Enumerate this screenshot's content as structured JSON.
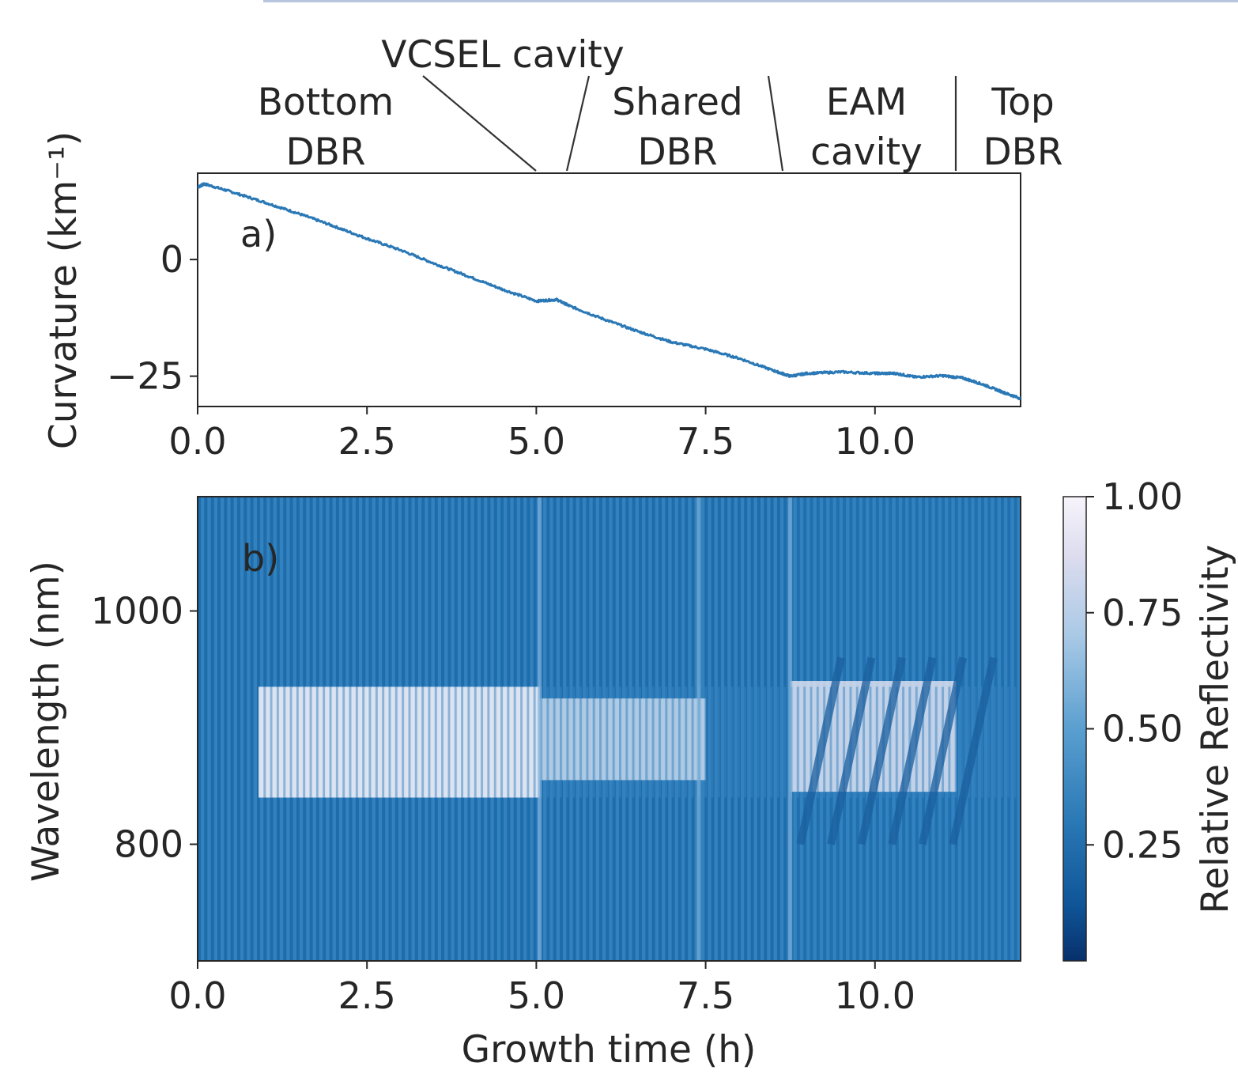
{
  "colors": {
    "line": "#2a78b5",
    "bg_stripe_dark": "#1c6aa8",
    "bg_stripe_light": "#4a93c8",
    "band_light": "#f0eef6"
  },
  "chart_data": [
    {
      "type": "line",
      "panel_label": "a)",
      "ylabel": "Curvature (km⁻¹)",
      "xlim": [
        0,
        12.15
      ],
      "ylim": [
        -31.5,
        18.5
      ],
      "x_ticks": [
        "0.0",
        "2.5",
        "5.0",
        "7.5",
        "10.0"
      ],
      "x_tick_values": [
        0,
        2.5,
        5,
        7.5,
        10
      ],
      "y_ticks": [
        "0",
        "−25"
      ],
      "y_tick_values": [
        0,
        -25
      ],
      "series": [
        {
          "x": [
            0,
            0.1,
            0.5,
            1.0,
            1.5,
            2.0,
            2.5,
            3.0,
            3.5,
            4.0,
            4.5,
            5.0,
            5.3,
            5.5,
            6.0,
            6.5,
            7.0,
            7.5,
            8.0,
            8.5,
            8.75,
            9.0,
            9.5,
            10.0,
            10.3,
            10.6,
            11.0,
            11.3,
            11.6,
            11.9,
            12.15
          ],
          "y": [
            15.5,
            16.2,
            14.5,
            12.2,
            9.8,
            7.2,
            4.5,
            2.0,
            -0.9,
            -3.6,
            -6.4,
            -8.9,
            -8.6,
            -10.0,
            -12.8,
            -15.4,
            -17.7,
            -19.2,
            -21.2,
            -23.8,
            -25.0,
            -24.4,
            -24.1,
            -24.4,
            -24.4,
            -25.2,
            -24.9,
            -25.4,
            -26.8,
            -28.5,
            -29.8
          ]
        }
      ],
      "annotations": [
        {
          "label": [
            "Bottom",
            "DBR"
          ]
        },
        {
          "label": [
            "VCSEL cavity"
          ]
        },
        {
          "label": [
            "Shared",
            "DBR"
          ]
        },
        {
          "label": [
            "EAM",
            "cavity"
          ]
        },
        {
          "label": [
            "Top",
            "DBR"
          ]
        }
      ],
      "region_boundaries_h": [
        5.0,
        5.45,
        8.75,
        11.2
      ]
    },
    {
      "type": "heatmap",
      "panel_label": "b)",
      "xlabel": "Growth time (h)",
      "ylabel": "Wavelength (nm)",
      "xlim": [
        0,
        12.15
      ],
      "ylim": [
        700,
        1098
      ],
      "x_ticks": [
        "0.0",
        "2.5",
        "5.0",
        "7.5",
        "10.0"
      ],
      "x_tick_values": [
        0,
        2.5,
        5,
        7.5,
        10
      ],
      "y_ticks": [
        "1000",
        "800"
      ],
      "y_tick_values": [
        1000,
        800
      ],
      "colorbar": {
        "label": "Relative Reflectivity",
        "range": [
          0.0,
          1.0
        ],
        "ticks": [
          "1.00",
          "0.75",
          "0.50",
          "0.25"
        ],
        "tick_values": [
          1.0,
          0.75,
          0.5,
          0.25
        ]
      },
      "stopband_nm": [
        840,
        935
      ],
      "oscillation_periods": 125
    }
  ]
}
